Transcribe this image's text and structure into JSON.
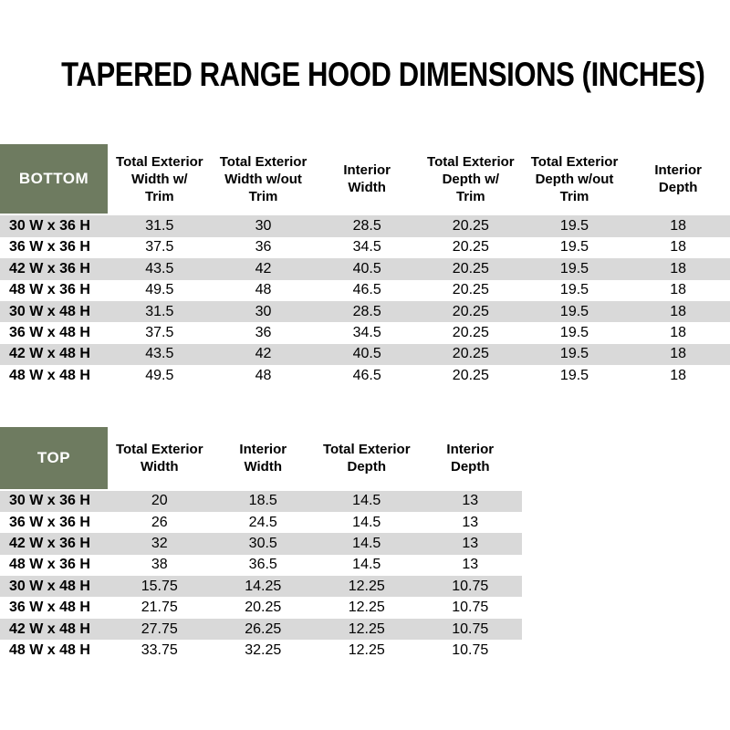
{
  "title": "TAPERED RANGE HOOD DIMENSIONS (INCHES)",
  "colors": {
    "header_green": "#6e7b60",
    "header_green_text": "#ffffff",
    "stripe_gray": "#d9d9d9",
    "row_white": "#ffffff",
    "text": "#000000"
  },
  "chart_data": [
    {
      "type": "table",
      "title": "BOTTOM",
      "columns": [
        "Total Exterior\nWidth w/\nTrim",
        "Total Exterior\nWidth w/out\nTrim",
        "Interior\nWidth",
        "Total Exterior\nDepth w/\nTrim",
        "Total Exterior\nDepth w/out\nTrim",
        "Interior\nDepth"
      ],
      "rows": [
        {
          "label": "30 W x 36 H",
          "values": [
            "31.5",
            "30",
            "28.5",
            "20.25",
            "19.5",
            "18"
          ]
        },
        {
          "label": "36 W x 36 H",
          "values": [
            "37.5",
            "36",
            "34.5",
            "20.25",
            "19.5",
            "18"
          ]
        },
        {
          "label": "42 W x 36 H",
          "values": [
            "43.5",
            "42",
            "40.5",
            "20.25",
            "19.5",
            "18"
          ]
        },
        {
          "label": "48 W x 36 H",
          "values": [
            "49.5",
            "48",
            "46.5",
            "20.25",
            "19.5",
            "18"
          ]
        },
        {
          "label": "30 W x 48 H",
          "values": [
            "31.5",
            "30",
            "28.5",
            "20.25",
            "19.5",
            "18"
          ]
        },
        {
          "label": "36 W x 48 H",
          "values": [
            "37.5",
            "36",
            "34.5",
            "20.25",
            "19.5",
            "18"
          ]
        },
        {
          "label": "42 W x 48 H",
          "values": [
            "43.5",
            "42",
            "40.5",
            "20.25",
            "19.5",
            "18"
          ]
        },
        {
          "label": "48 W x 48 H",
          "values": [
            "49.5",
            "48",
            "46.5",
            "20.25",
            "19.5",
            "18"
          ]
        }
      ],
      "striped": true,
      "stripe_pattern": "odd-rows-gray"
    },
    {
      "type": "table",
      "title": "TOP",
      "columns": [
        "Total Exterior\nWidth",
        "Interior\nWidth",
        "Total Exterior\nDepth",
        "Interior\nDepth"
      ],
      "rows": [
        {
          "label": "30 W x 36 H",
          "values": [
            "20",
            "18.5",
            "14.5",
            "13"
          ]
        },
        {
          "label": "36 W x 36 H",
          "values": [
            "26",
            "24.5",
            "14.5",
            "13"
          ]
        },
        {
          "label": "42 W x 36 H",
          "values": [
            "32",
            "30.5",
            "14.5",
            "13"
          ]
        },
        {
          "label": "48 W x 36 H",
          "values": [
            "38",
            "36.5",
            "14.5",
            "13"
          ]
        },
        {
          "label": "30 W x 48 H",
          "values": [
            "15.75",
            "14.25",
            "12.25",
            "10.75"
          ]
        },
        {
          "label": "36 W x 48 H",
          "values": [
            "21.75",
            "20.25",
            "12.25",
            "10.75"
          ]
        },
        {
          "label": "42 W x 48 H",
          "values": [
            "27.75",
            "26.25",
            "12.25",
            "10.75"
          ]
        },
        {
          "label": "48 W x 48 H",
          "values": [
            "33.75",
            "32.25",
            "12.25",
            "10.75"
          ]
        }
      ],
      "striped": true,
      "stripe_pattern": "odd-rows-gray"
    }
  ]
}
